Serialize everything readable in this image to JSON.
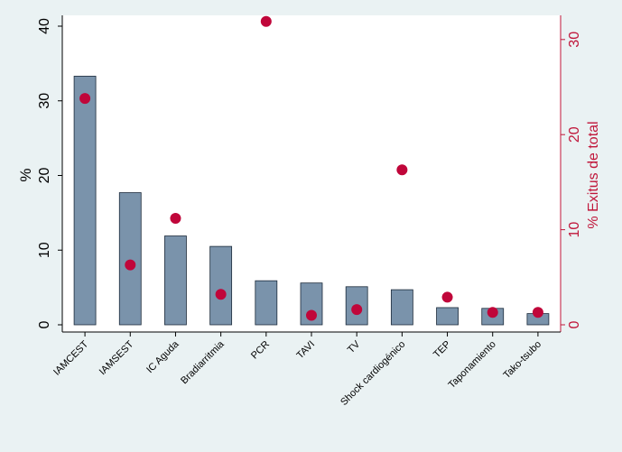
{
  "chart_data": {
    "type": "bar",
    "categories": [
      "IAMCEST",
      "IAMSEST",
      "IC Aguda",
      "Bradiarritmia",
      "PCR",
      "TAVI",
      "TV",
      "Shock cardiogénico",
      "TEP",
      "Taponamiento",
      "Tako-tsubo"
    ],
    "series": [
      {
        "axis": "left",
        "mark": "bar",
        "color": "#7a93ab",
        "values": [
          33.3,
          17.7,
          11.9,
          10.5,
          5.9,
          5.6,
          5.1,
          4.7,
          2.3,
          2.2,
          1.5
        ]
      },
      {
        "axis": "right",
        "mark": "scatter",
        "color": "#c0063a",
        "values": [
          23.8,
          6.3,
          11.2,
          3.2,
          31.9,
          1.0,
          1.6,
          16.3,
          2.9,
          1.3,
          1.3
        ]
      }
    ],
    "ylabel": "%",
    "y2label": "% Exitus de total",
    "ylim": [
      0,
      40
    ],
    "y2lim": [
      0,
      31.5
    ],
    "yticks": [
      0,
      10,
      20,
      30,
      40
    ],
    "y2ticks": [
      0,
      10,
      20,
      30
    ],
    "grid": "horizontal",
    "grid_color": "#ffffff",
    "plot_background": "#ffffff",
    "page_background": "#eaf2f3",
    "legend": "none"
  }
}
